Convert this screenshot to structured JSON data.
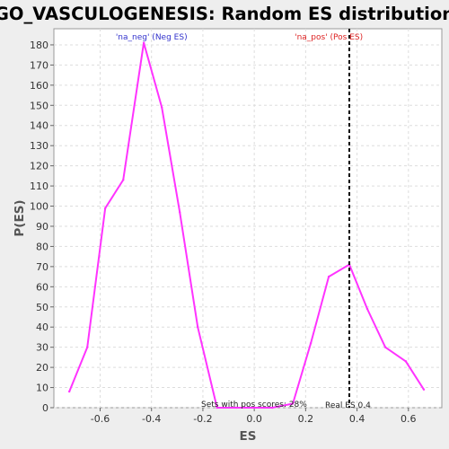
{
  "colors": {
    "background": "#eeeeee",
    "plot_background": "#ffffff",
    "series_line": "#ff33ff",
    "legend_neg": "#3333cc",
    "legend_pos": "#dd2222",
    "real_es_line": "#000000",
    "grid": "#dddddd"
  },
  "chart_data": {
    "type": "line",
    "title": "GO_VASCULOGENESIS: Random ES distribution",
    "xlabel": "ES",
    "ylabel": "P(ES)",
    "xlim": [
      -0.78,
      0.73
    ],
    "ylim": [
      0,
      188
    ],
    "xticks": [
      -0.6,
      -0.4,
      -0.2,
      0.0,
      0.2,
      0.4,
      0.6
    ],
    "xtick_labels": [
      "-0.6",
      "-0.4",
      "-0.2",
      "0.0",
      "0.2",
      "0.4",
      "0.6"
    ],
    "yticks": [
      0,
      10,
      20,
      30,
      40,
      50,
      60,
      70,
      80,
      90,
      100,
      110,
      120,
      130,
      140,
      150,
      160,
      170,
      180
    ],
    "grid": true,
    "series": [
      {
        "x": [
          -0.72,
          -0.65,
          -0.58,
          -0.51,
          -0.43,
          -0.36,
          -0.29,
          -0.22,
          -0.145,
          -0.07,
          0.0,
          0.07,
          0.15,
          0.22,
          0.29,
          0.37,
          0.44,
          0.51,
          0.59,
          0.66
        ],
        "y": [
          8,
          30,
          99,
          113,
          181,
          149,
          97,
          40,
          0,
          0,
          0,
          0,
          2,
          32,
          65,
          71,
          49,
          30,
          23,
          9
        ]
      }
    ],
    "legend": [
      {
        "label": "'na_neg' (Neg ES)",
        "color": "#3333cc"
      },
      {
        "label": "'na_pos' (Pos ES)",
        "color": "#dd2222"
      }
    ],
    "real_es": 0.37,
    "annotations": {
      "real_es_label": "Real ES 0.4",
      "sets_label": "Sets with pos scores: 28%"
    }
  }
}
